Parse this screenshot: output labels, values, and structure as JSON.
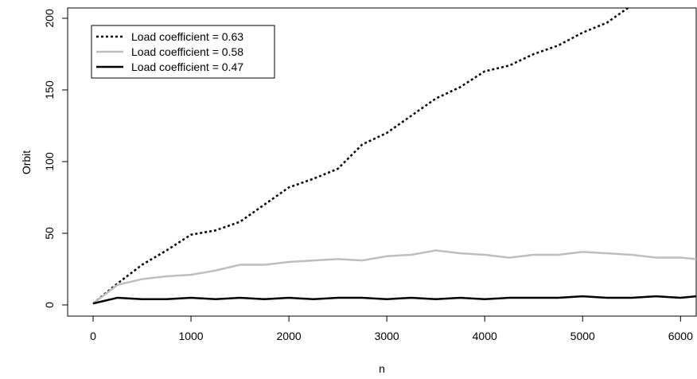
{
  "chart_data": {
    "type": "line",
    "x_label": "n",
    "y_label": "Orbit",
    "x": [
      0,
      250,
      500,
      750,
      1000,
      1250,
      1500,
      1750,
      2000,
      2250,
      2500,
      2750,
      3000,
      3250,
      3500,
      3750,
      4000,
      4250,
      4500,
      4750,
      5000,
      5250,
      5500,
      5750,
      6000,
      6160
    ],
    "series": [
      {
        "name": "Load coefficient = 0.63",
        "color": "#000000",
        "line_style": "dotted",
        "values": [
          1,
          15,
          28,
          38,
          49,
          52,
          58,
          70,
          82,
          88,
          95,
          112,
          120,
          132,
          144,
          152,
          163,
          167,
          175,
          181,
          190,
          197,
          209,
          null,
          null,
          null
        ]
      },
      {
        "name": "Load coefficient = 0.58",
        "color": "#bebebe",
        "line_style": "solid",
        "values": [
          1,
          14,
          18,
          20,
          21,
          24,
          28,
          28,
          30,
          31,
          32,
          31,
          34,
          35,
          38,
          36,
          35,
          33,
          35,
          35,
          37,
          36,
          35,
          33,
          33,
          32
        ]
      },
      {
        "name": "Load coefficient = 0.47",
        "color": "#000000",
        "line_style": "solid",
        "values": [
          1,
          5,
          4,
          4,
          5,
          4,
          5,
          4,
          5,
          4,
          5,
          5,
          4,
          5,
          4,
          5,
          4,
          5,
          5,
          5,
          6,
          5,
          5,
          6,
          5,
          6
        ]
      }
    ],
    "xlim": [
      -260,
      6160
    ],
    "ylim": [
      -7.8,
      207.2
    ],
    "xticks": [
      0,
      1000,
      2000,
      3000,
      4000,
      5000,
      6000
    ],
    "yticks": [
      0,
      50,
      100,
      150,
      200
    ],
    "legend": "top-left"
  }
}
